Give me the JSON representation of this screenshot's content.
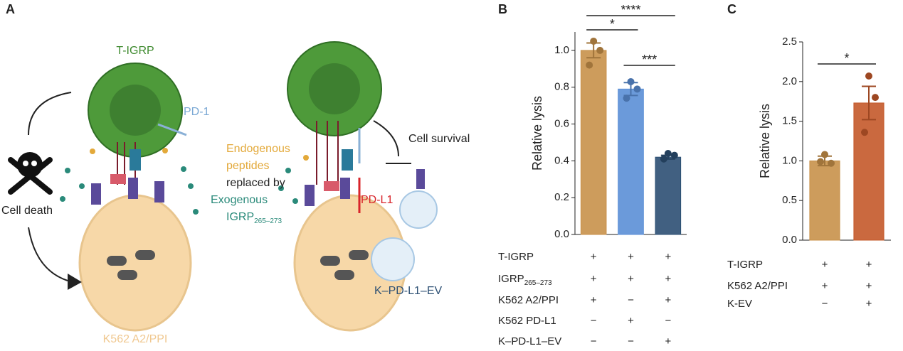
{
  "diagram": {
    "panel": "A",
    "t_cell": "T-IGRP",
    "pd1": "PD-1",
    "endogenous": [
      "Endogenous",
      "peptides"
    ],
    "replaced": "replaced by",
    "exogenous": "Exogenous",
    "igrp": "IGRP",
    "igrp_sub": "265–273",
    "cell_death": "Cell death",
    "k562": "K562 A2/PPI",
    "survival": "Cell survival",
    "pdl1": "PD-L1",
    "ev": "K–PD-L1–EV"
  },
  "chart_data": [
    {
      "panel": "B",
      "type": "bar",
      "ylabel": "Relative lysis",
      "categories": [
        null,
        null,
        null
      ],
      "values": [
        1.0,
        0.79,
        0.42
      ],
      "errors": [
        0.04,
        0.035,
        0.01
      ],
      "points": [
        [
          1.05,
          1.0,
          0.92
        ],
        [
          0.83,
          0.79,
          0.74
        ],
        [
          0.44,
          0.43,
          0.41
        ]
      ],
      "colors": [
        "#c8914a",
        "#5b8fd6",
        "#2c4f73"
      ],
      "ylim": [
        0,
        1.1
      ],
      "yticks": [
        {
          "value": 0,
          "label": "0.0"
        },
        0.2,
        0.4,
        0.6,
        0.8,
        {
          "value": 1,
          "label": "1.0"
        }
      ],
      "annotations": [
        "*",
        "****",
        "***"
      ],
      "conditions": [
        {
          "label": "T-IGRP",
          "marks": [
            "+",
            "+",
            "+"
          ]
        },
        {
          "label": "IGRP",
          "sub": "265–273",
          "marks": [
            "+",
            "+",
            "+"
          ]
        },
        {
          "label": "K562 A2/PPI",
          "marks": [
            "+",
            "−",
            "+"
          ]
        },
        {
          "label": "K562 PD-L1",
          "marks": [
            "−",
            "+",
            "−"
          ]
        },
        {
          "label": "K–PD-L1–EV",
          "marks": [
            "−",
            "−",
            "+"
          ]
        }
      ]
    },
    {
      "panel": "C",
      "type": "bar",
      "ylabel": "Relative lysis",
      "categories": [
        null,
        null
      ],
      "values": [
        1.0,
        1.73
      ],
      "errors": [
        0.06,
        0.21
      ],
      "points": [
        [
          1.08,
          0.97,
          0.99
        ],
        [
          2.07,
          1.8,
          1.36
        ]
      ],
      "colors": [
        "#c8914a",
        "#c4592a"
      ],
      "ylim": [
        0,
        2.5
      ],
      "yticks": [
        {
          "value": 0,
          "label": "0.0"
        },
        0.5,
        {
          "value": 1,
          "label": "1.0"
        },
        1.5,
        {
          "value": 2,
          "label": "2.0"
        },
        2.5
      ],
      "annotations": [
        "*"
      ],
      "conditions": [
        {
          "label": "T-IGRP",
          "marks": [
            "+",
            "+"
          ]
        },
        {
          "label": "K562 A2/PPI",
          "marks": [
            "+",
            "+"
          ]
        },
        {
          "label": "K-EV",
          "marks": [
            "−",
            "+"
          ]
        }
      ]
    }
  ]
}
